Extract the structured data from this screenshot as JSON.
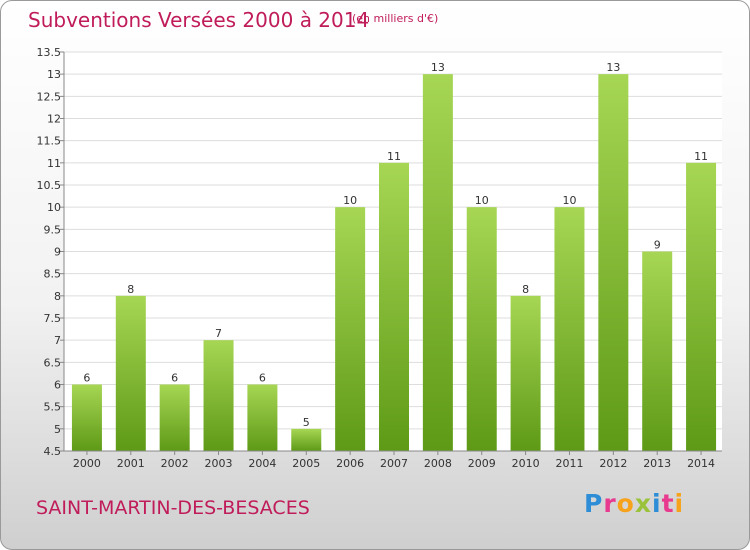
{
  "header": {
    "title": "Subventions Versées 2000 à 2014",
    "subtitle": "(en milliers d'€)"
  },
  "footer": {
    "commune": "SAINT-MARTIN-DES-BESACES",
    "logo_letters": [
      "P",
      "r",
      "o",
      "x",
      "i",
      "t",
      "i"
    ],
    "logo_colors": [
      "#2d8dd6",
      "#e83a8f",
      "#f7a21b",
      "#9ac23a",
      "#2d8dd6",
      "#e83a8f",
      "#f7a21b"
    ]
  },
  "chart_data": {
    "type": "bar",
    "categories": [
      "2000",
      "2001",
      "2002",
      "2003",
      "2004",
      "2005",
      "2006",
      "2007",
      "2008",
      "2009",
      "2010",
      "2011",
      "2012",
      "2013",
      "2014"
    ],
    "values": [
      6,
      8,
      6,
      7,
      6,
      5,
      10,
      11,
      13,
      10,
      8,
      10,
      13,
      9,
      11
    ],
    "title": "Subventions Versées 2000 à 2014",
    "xlabel": "",
    "ylabel": "",
    "ylim": [
      4.5,
      13.5
    ],
    "yticks": [
      "4.5",
      "5",
      "5.5",
      "6",
      "6.5",
      "7",
      "7.5",
      "8",
      "8.5",
      "9",
      "9.5",
      "10",
      "10.5",
      "11",
      "11.5",
      "12",
      "12.5",
      "13",
      "13.5"
    ],
    "grid": true,
    "colors": {
      "bar_top": "#a6d654",
      "bar_bottom": "#5e9a16",
      "grid": "#dddddd"
    }
  }
}
